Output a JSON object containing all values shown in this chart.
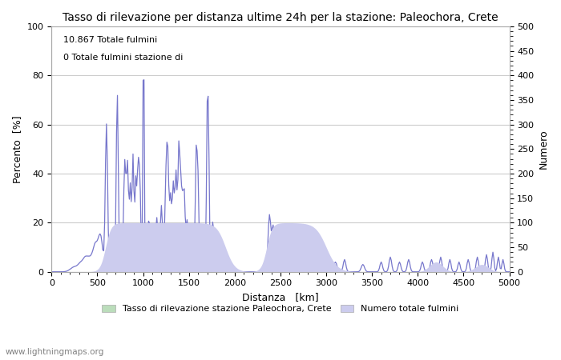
{
  "title": "Tasso di rilevazione per distanza ultime 24h per la stazione: Paleochora, Crete",
  "xlabel": "Distanza   [km]",
  "ylabel_left": "Percento  [%]",
  "ylabel_right": "Numero",
  "annotation_line1": "10.867 Totale fulmini",
  "annotation_line2": "0 Totale fulmini stazione di",
  "xlim": [
    0,
    5000
  ],
  "ylim_left": [
    0,
    100
  ],
  "ylim_right": [
    0,
    500
  ],
  "xticks": [
    0,
    500,
    1000,
    1500,
    2000,
    2500,
    3000,
    3500,
    4000,
    4500,
    5000
  ],
  "yticks_left": [
    0,
    20,
    40,
    60,
    80,
    100
  ],
  "yticks_right": [
    0,
    50,
    100,
    150,
    200,
    250,
    300,
    350,
    400,
    450,
    500
  ],
  "legend_label_green": "Tasso di rilevazione stazione Paleochora, Crete",
  "legend_label_blue": "Numero totale fulmini",
  "watermark": "www.lightningmaps.org",
  "line_color": "#7777cc",
  "fill_color_green": "#bbddbb",
  "fill_color_blue": "#ccccee",
  "bg_color": "#ffffff",
  "grid_color": "#cccccc",
  "title_fontsize": 10,
  "axis_fontsize": 9,
  "tick_fontsize": 8
}
